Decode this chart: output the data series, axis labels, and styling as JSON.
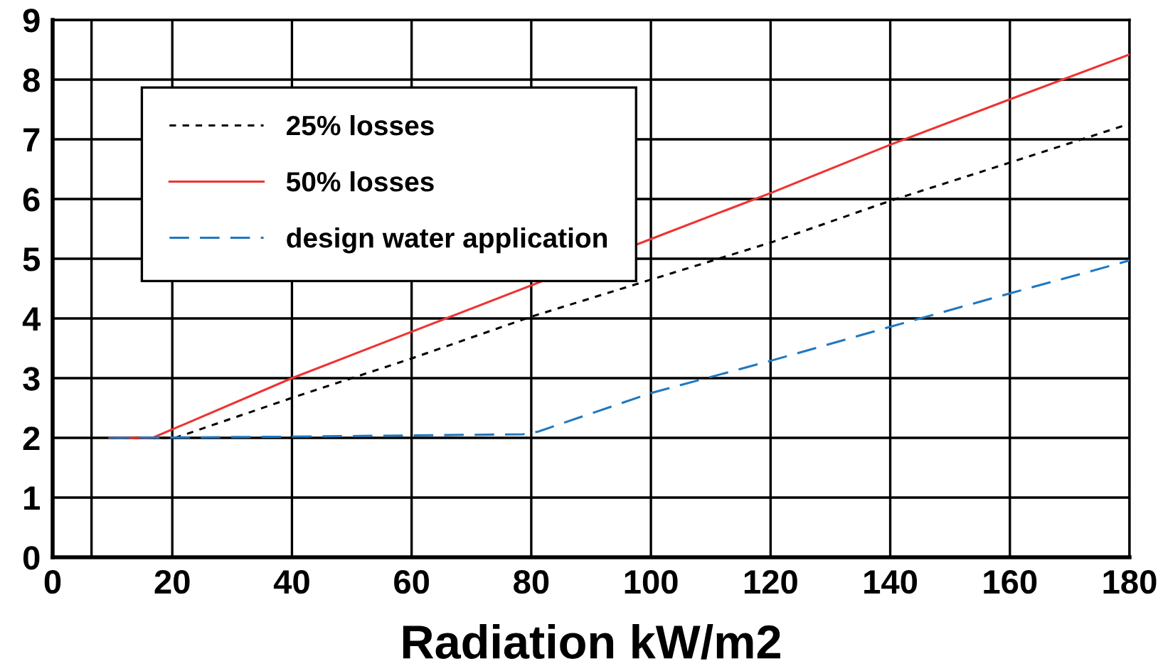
{
  "chart_data": {
    "type": "line",
    "xlabel": "Radiation kW/m2",
    "xlim": [
      0,
      180
    ],
    "xticks": [
      0,
      20,
      40,
      60,
      80,
      100,
      120,
      140,
      160,
      180
    ],
    "ylim": [
      0,
      9
    ],
    "yticks": [
      0,
      1,
      2,
      3,
      4,
      5,
      6,
      7,
      8,
      9
    ],
    "grid": true,
    "legend": "top left",
    "marker": "none",
    "ref_lines": [
      {
        "axis": "x",
        "value": 6.5,
        "color": "#000000"
      }
    ],
    "series": [
      {
        "name": "25% losses",
        "color": "#000000",
        "line_style": "dotted",
        "x": [
          9.5,
          20.5,
          40,
          60,
          80,
          100,
          120,
          140,
          160,
          180
        ],
        "values": [
          2,
          2,
          2.67,
          3.33,
          4.03,
          4.65,
          5.27,
          5.97,
          6.61,
          7.26
        ]
      },
      {
        "name": "50% losses",
        "color": "#ee3333",
        "line_style": "solid",
        "x": [
          9.5,
          16.7,
          40,
          100,
          120,
          140,
          160,
          180
        ],
        "values": [
          2,
          2,
          3,
          5.33,
          6.1,
          6.91,
          7.67,
          8.42
        ]
      },
      {
        "name": "design water application",
        "color": "#1f78c1",
        "line_style": "dashed",
        "x": [
          9.5,
          40,
          78.6,
          81,
          100,
          120,
          140,
          160,
          180
        ],
        "values": [
          2,
          2.02,
          2.06,
          2.1,
          2.75,
          3.29,
          3.86,
          4.42,
          4.97
        ]
      }
    ]
  }
}
